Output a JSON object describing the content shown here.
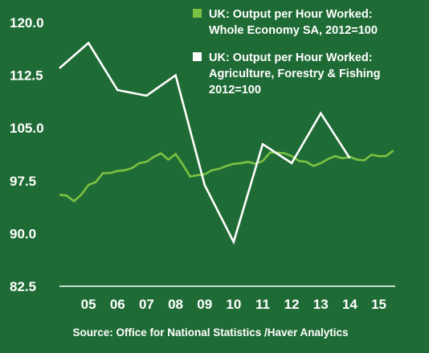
{
  "chart_data": {
    "type": "line",
    "background_color": "#1f6b35",
    "y_ticks": [
      "120.0",
      "112.5",
      "105.0",
      "97.5",
      "90.0",
      "82.5"
    ],
    "y_tick_values": [
      120,
      112.5,
      105,
      97.5,
      90,
      82.5
    ],
    "ylim": [
      82.5,
      120
    ],
    "x_ticks": [
      "05",
      "06",
      "07",
      "08",
      "09",
      "10",
      "11",
      "12",
      "13",
      "14",
      "15"
    ],
    "x_tick_values": [
      2005,
      2006,
      2007,
      2008,
      2009,
      2010,
      2011,
      2012,
      2013,
      2014,
      2015
    ],
    "xlim": [
      2004,
      2015.4
    ],
    "legend_position": "top-right",
    "series": [
      {
        "name": "UK: Output per Hour Worked: Whole Economy SA, 2012=100",
        "legend_lines": [
          "UK: Output per Hour Worked:",
          "Whole Economy SA, 2012=100"
        ],
        "color": "#7cc242",
        "marker": "square",
        "points": [
          [
            2004.0,
            95.5
          ],
          [
            2004.25,
            95.4
          ],
          [
            2004.5,
            94.6
          ],
          [
            2004.75,
            95.5
          ],
          [
            2005.0,
            96.9
          ],
          [
            2005.25,
            97.3
          ],
          [
            2005.5,
            98.6
          ],
          [
            2005.75,
            98.6
          ],
          [
            2006.0,
            98.9
          ],
          [
            2006.25,
            99.0
          ],
          [
            2006.5,
            99.3
          ],
          [
            2006.75,
            100.0
          ],
          [
            2007.0,
            100.2
          ],
          [
            2007.25,
            100.9
          ],
          [
            2007.5,
            101.4
          ],
          [
            2007.75,
            100.5
          ],
          [
            2008.0,
            101.3
          ],
          [
            2008.25,
            99.8
          ],
          [
            2008.5,
            98.1
          ],
          [
            2008.75,
            98.3
          ],
          [
            2009.0,
            98.4
          ],
          [
            2009.25,
            99.0
          ],
          [
            2009.5,
            99.2
          ],
          [
            2009.75,
            99.6
          ],
          [
            2010.0,
            99.9
          ],
          [
            2010.25,
            100.0
          ],
          [
            2010.5,
            100.2
          ],
          [
            2010.75,
            99.9
          ],
          [
            2011.0,
            100.3
          ],
          [
            2011.25,
            101.5
          ],
          [
            2011.5,
            101.5
          ],
          [
            2011.75,
            101.4
          ],
          [
            2012.0,
            101.0
          ],
          [
            2012.25,
            100.3
          ],
          [
            2012.5,
            100.2
          ],
          [
            2012.75,
            99.6
          ],
          [
            2013.0,
            100.0
          ],
          [
            2013.25,
            100.6
          ],
          [
            2013.5,
            101.0
          ],
          [
            2013.75,
            100.7
          ],
          [
            2014.0,
            100.9
          ],
          [
            2014.25,
            100.5
          ],
          [
            2014.5,
            100.4
          ],
          [
            2014.75,
            101.2
          ],
          [
            2015.0,
            101.0
          ],
          [
            2015.25,
            101.0
          ],
          [
            2015.5,
            101.8
          ]
        ]
      },
      {
        "name": "UK: Output per Hour Worked: Agriculture, Forestry & Fishing 2012=100",
        "legend_lines": [
          "UK: Output per Hour Worked:",
          "Agriculture, Forestry & Fishing",
          "2012=100"
        ],
        "color": "#ffffff",
        "marker": "square",
        "points": [
          [
            2004.0,
            113.5
          ],
          [
            2005.0,
            117.1
          ],
          [
            2006.0,
            110.4
          ],
          [
            2007.0,
            109.6
          ],
          [
            2008.0,
            112.5
          ],
          [
            2009.0,
            96.9
          ],
          [
            2010.0,
            88.8
          ],
          [
            2011.0,
            102.7
          ],
          [
            2012.0,
            100.0
          ],
          [
            2013.0,
            107.1
          ],
          [
            2014.0,
            100.7
          ]
        ]
      }
    ],
    "source": "Source: Office for National Statistics /Haver Analytics"
  }
}
